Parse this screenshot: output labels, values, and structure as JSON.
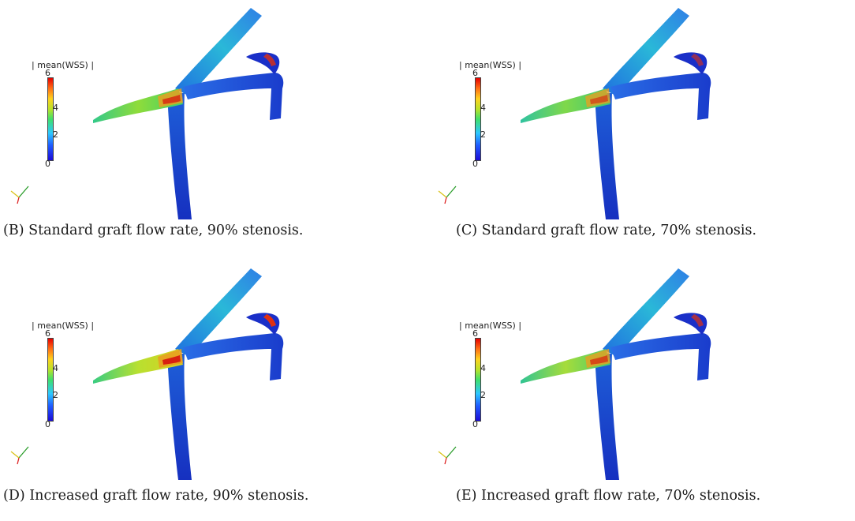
{
  "legend": {
    "title": "| mean(WSS) |",
    "ticks": [
      "6",
      "4",
      "2",
      "0"
    ]
  },
  "colormap": {
    "low": "#1c0cd6",
    "mid": "#3fe06a",
    "high": "#e60000"
  },
  "panels": [
    {
      "tag": "(B)",
      "caption": "Standard graft flow rate, 90% stenosis."
    },
    {
      "tag": "(C)",
      "caption": "Standard graft flow rate, 70% stenosis."
    },
    {
      "tag": "(D)",
      "caption": "Increased graft flow rate, 90% stenosis."
    },
    {
      "tag": "(E)",
      "caption": "Increased graft flow rate, 70% stenosis."
    }
  ]
}
